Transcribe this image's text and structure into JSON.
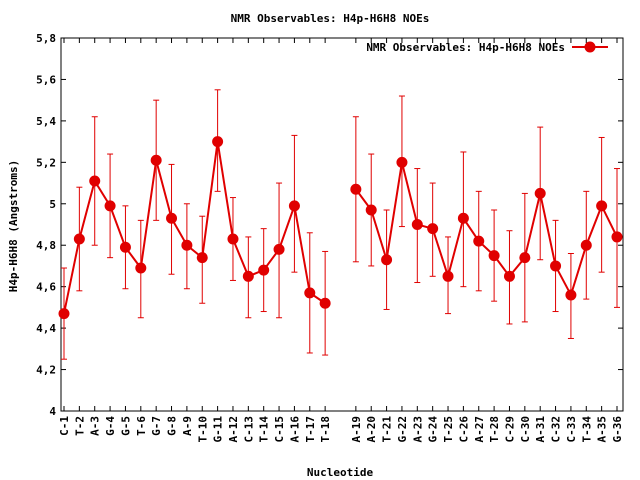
{
  "chart_data": {
    "type": "line",
    "title": "NMR Observables: H4p-H6H8 NOEs",
    "xlabel": "Nucleotide",
    "ylabel": "H4p-H6H8 (Angstroms)",
    "ylim": [
      4,
      5.8
    ],
    "yticks": [
      "4",
      "4,2",
      "4,4",
      "4,6",
      "4,8",
      "5",
      "5,2",
      "5,4",
      "5,6",
      "5,8"
    ],
    "ytick_values": [
      4.0,
      4.2,
      4.4,
      4.6,
      4.8,
      5.0,
      5.2,
      5.4,
      5.6,
      5.8
    ],
    "legend": {
      "label": "NMR Observables: H4p-H6H8 NOEs",
      "position": "top-right"
    },
    "series_color": "#e00000",
    "series": [
      {
        "name": "NMR Observables: H4p-H6H8 NOEs",
        "segments": [
          {
            "categories": [
              "C-1",
              "T-2",
              "A-3",
              "G-4",
              "G-5",
              "T-6",
              "G-7",
              "G-8",
              "A-9",
              "T-10",
              "G-11",
              "A-12",
              "C-13",
              "T-14",
              "C-15",
              "A-16",
              "T-17",
              "T-18"
            ],
            "values": [
              4.47,
              4.83,
              5.11,
              4.99,
              4.79,
              4.69,
              5.21,
              4.93,
              4.8,
              4.74,
              5.3,
              4.83,
              4.65,
              4.68,
              4.78,
              4.99,
              4.57,
              4.52
            ],
            "err_low": [
              4.25,
              4.58,
              4.8,
              4.74,
              4.59,
              4.45,
              4.92,
              4.66,
              4.59,
              4.52,
              5.06,
              4.63,
              4.45,
              4.48,
              4.45,
              4.67,
              4.28,
              4.27
            ],
            "err_high": [
              4.69,
              5.08,
              5.42,
              5.24,
              4.99,
              4.92,
              5.5,
              5.19,
              5.0,
              4.94,
              5.55,
              5.03,
              4.84,
              4.88,
              5.1,
              5.33,
              4.86,
              4.77
            ]
          },
          {
            "categories": [
              "A-19",
              "A-20",
              "T-21",
              "G-22",
              "A-23",
              "G-24",
              "T-25",
              "C-26",
              "A-27",
              "T-28",
              "C-29",
              "C-30",
              "A-31",
              "C-32",
              "C-33",
              "T-34",
              "A-35",
              "G-36"
            ],
            "values": [
              5.07,
              4.97,
              4.73,
              5.2,
              4.9,
              4.88,
              4.65,
              4.93,
              4.82,
              4.75,
              4.65,
              4.74,
              5.05,
              4.7,
              4.56,
              4.8,
              4.99,
              4.84
            ],
            "err_low": [
              4.72,
              4.7,
              4.49,
              4.89,
              4.62,
              4.65,
              4.47,
              4.6,
              4.58,
              4.53,
              4.42,
              4.43,
              4.73,
              4.48,
              4.35,
              4.54,
              4.67,
              4.5
            ],
            "err_high": [
              5.42,
              5.24,
              4.97,
              5.52,
              5.17,
              5.1,
              4.84,
              5.25,
              5.06,
              4.97,
              4.87,
              5.05,
              5.37,
              4.92,
              4.76,
              5.06,
              5.32,
              5.17
            ]
          }
        ]
      }
    ]
  }
}
